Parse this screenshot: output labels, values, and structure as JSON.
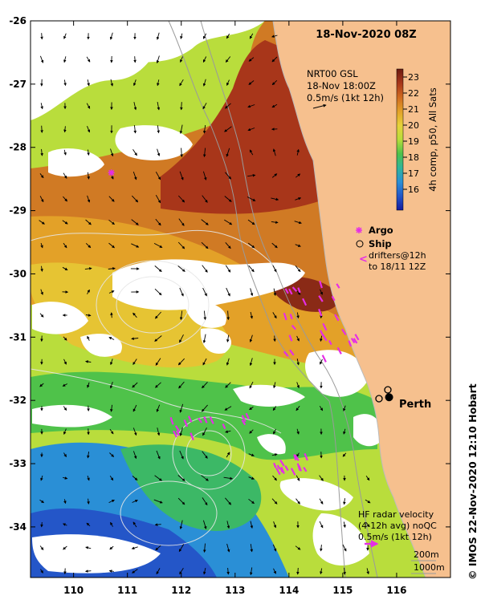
{
  "title": "18-Nov-2020 08Z",
  "gsl": {
    "line1": "NRT00 GSL",
    "line2": "18-Nov 18:00Z",
    "line3": "0.5m/s (1kt 12h)"
  },
  "colorbar": {
    "label": "4h comp, p50, All Sats",
    "ticks": [
      "23",
      "22",
      "21",
      "20",
      "19",
      "18",
      "17",
      "16"
    ],
    "colors": [
      "#6b1a10",
      "#a8361a",
      "#cf6a1f",
      "#e3a128",
      "#e6d23a",
      "#b7dd3a",
      "#4fc24a",
      "#2fb59a",
      "#2a8fd6",
      "#2456c8",
      "#151a9e"
    ]
  },
  "legend": {
    "argo": "Argo",
    "ship": "Ship",
    "drifters_line1": "drifters@12h",
    "drifters_line2": "to 18/11 12Z"
  },
  "city": "Perth",
  "hf": {
    "line1": "HF radar velocity",
    "line2": "(4-12h avg) noQC",
    "line3": "0.5m/s (1kt 12h)"
  },
  "depth": {
    "d1": "200m",
    "d2": "1000m"
  },
  "credit": "© IMOS 22-Nov-2020 12:10 Hobart",
  "axes": {
    "lon_labels": [
      "110",
      "111",
      "112",
      "113",
      "114",
      "115",
      "116"
    ],
    "lat_labels": [
      "-26",
      "-27",
      "-28",
      "-29",
      "-30",
      "-31",
      "-32",
      "-33",
      "-34"
    ],
    "lon_values": [
      110,
      111,
      112,
      113,
      114,
      115,
      116
    ],
    "lat_values": [
      -26,
      -27,
      -28,
      -29,
      -30,
      -31,
      -32,
      -33,
      -34
    ],
    "lon_range": [
      109.2,
      117.0
    ],
    "lat_range": [
      -26.0,
      -34.8
    ]
  },
  "markers": {
    "argo_lonlat": [
      110.7,
      -28.4
    ],
    "perth_lonlat": [
      115.86,
      -31.95
    ]
  },
  "colors": {
    "land": "#f6c08e",
    "cloud": "#ffffff",
    "drifter": "#e52ee5",
    "argo": "#e52ee5"
  }
}
